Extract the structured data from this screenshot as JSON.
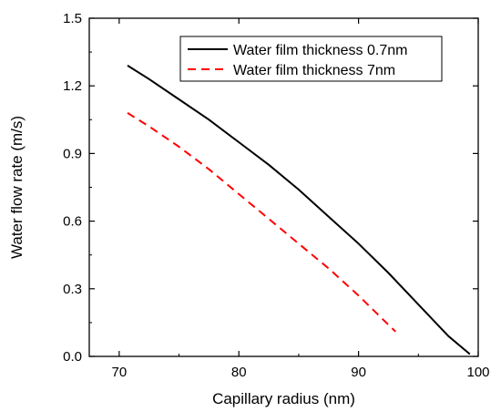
{
  "chart_data": {
    "type": "line",
    "title": "",
    "xlabel": "Capillary radius (nm)",
    "ylabel": "Water flow rate (m/s)",
    "xlim": [
      67.5,
      100
    ],
    "ylim": [
      0,
      1.5
    ],
    "xticks": [
      70,
      80,
      90,
      100
    ],
    "yticks": [
      0.0,
      0.3,
      0.6,
      0.9,
      1.2,
      1.5
    ],
    "xtick_labels": [
      "70",
      "80",
      "90",
      "100"
    ],
    "ytick_labels": [
      "0.0",
      "0.3",
      "0.6",
      "0.9",
      "1.2",
      "1.5"
    ],
    "grid": false,
    "legend_position": "top-right",
    "series": [
      {
        "name": "Water film thickness 0.7nm",
        "color": "#000000",
        "line_style": "solid",
        "x": [
          70.7,
          72.5,
          75,
          77.5,
          80,
          82.5,
          85,
          87.5,
          90,
          92.5,
          95,
          97.5,
          99.3
        ],
        "y": [
          1.29,
          1.23,
          1.14,
          1.05,
          0.95,
          0.85,
          0.74,
          0.62,
          0.5,
          0.37,
          0.23,
          0.09,
          0.01
        ]
      },
      {
        "name": "Water film thickness 7nm",
        "color": "#ff0000",
        "line_style": "dashed",
        "x": [
          70.7,
          72.5,
          75,
          77.5,
          80,
          82.5,
          85,
          87.5,
          90,
          92.5,
          93.1
        ],
        "y": [
          1.08,
          1.02,
          0.93,
          0.83,
          0.72,
          0.61,
          0.5,
          0.39,
          0.27,
          0.14,
          0.11
        ]
      }
    ]
  }
}
